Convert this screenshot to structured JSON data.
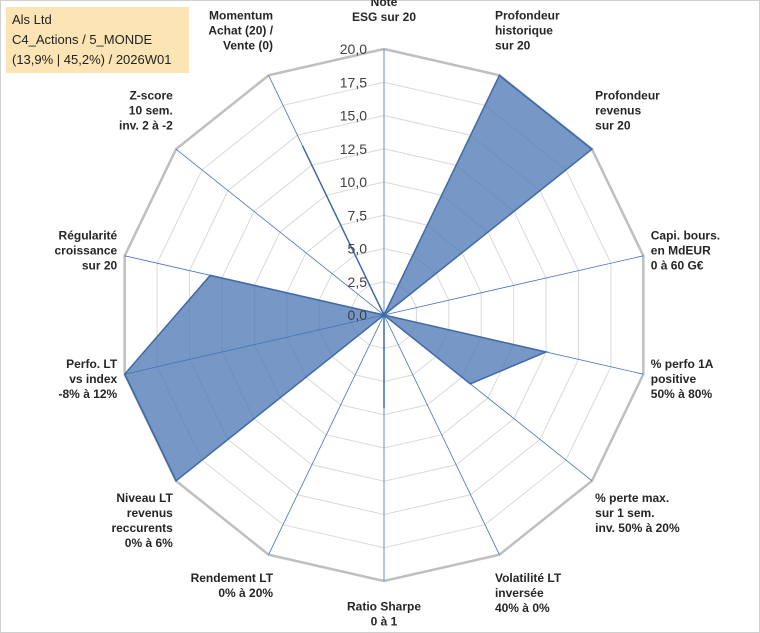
{
  "title_box": {
    "line1": "Als Ltd",
    "line2": "C4_Actions / 5_MONDE",
    "line3": "(13,9% | 45,2%) / 2026W01",
    "background": "#fce4b4"
  },
  "chart_data": {
    "type": "radar",
    "rmin": 0,
    "rmax": 20,
    "tick_step": 2.5,
    "tick_labels": [
      "0,0",
      "2,5",
      "5,0",
      "7,5",
      "10,0",
      "12,5",
      "15,0",
      "17,5",
      "20,0"
    ],
    "axes": [
      {
        "label": [
          "Note",
          "ESG sur 20"
        ],
        "value": 0
      },
      {
        "label": [
          "Profondeur",
          "historique",
          "sur 20"
        ],
        "value": 20
      },
      {
        "label": [
          "Profondeur",
          "revenus",
          "sur 20"
        ],
        "value": 20
      },
      {
        "label": [
          "Capi. bours.",
          "en MdEUR",
          "0 à 60 G€"
        ],
        "value": 0
      },
      {
        "label": [
          "% perfo 1A",
          "positive",
          "50% à 80%"
        ],
        "value": 12.5
      },
      {
        "label": [
          "% perte max.",
          "sur 1 sem.",
          "inv. 50% à 20%"
        ],
        "value": 8.3
      },
      {
        "label": [
          "Volatilité LT",
          "inversée",
          "40% à 0%"
        ],
        "value": 0
      },
      {
        "label": [
          "Ratio Sharpe",
          "0 à 1"
        ],
        "value": 7
      },
      {
        "label": [
          "Rendement LT",
          "0% à 20%"
        ],
        "value": 0
      },
      {
        "label": [
          "Niveau LT",
          "revenus",
          "reccurents",
          "0% à 6%"
        ],
        "value": 20
      },
      {
        "label": [
          "Perfo. LT",
          "vs index",
          "-8% à 12%"
        ],
        "value": 20
      },
      {
        "label": [
          "Régularité",
          "croissance",
          "sur 20"
        ],
        "value": 13.4
      },
      {
        "label": [
          "Z-score",
          "10 sem.",
          "inv. 2 à -2"
        ],
        "value": 0
      },
      {
        "label": [
          "Momentum",
          "Achat (20) /",
          "Vente (0)"
        ],
        "value": 14.1
      }
    ],
    "grid": true,
    "legend": "none",
    "colors": {
      "fill": "#4a76b3",
      "stroke": "#3f6aa8",
      "grid": "#d9d9d9",
      "outer_ring": "#bfbfbf",
      "spokes": "#4472c4"
    }
  }
}
